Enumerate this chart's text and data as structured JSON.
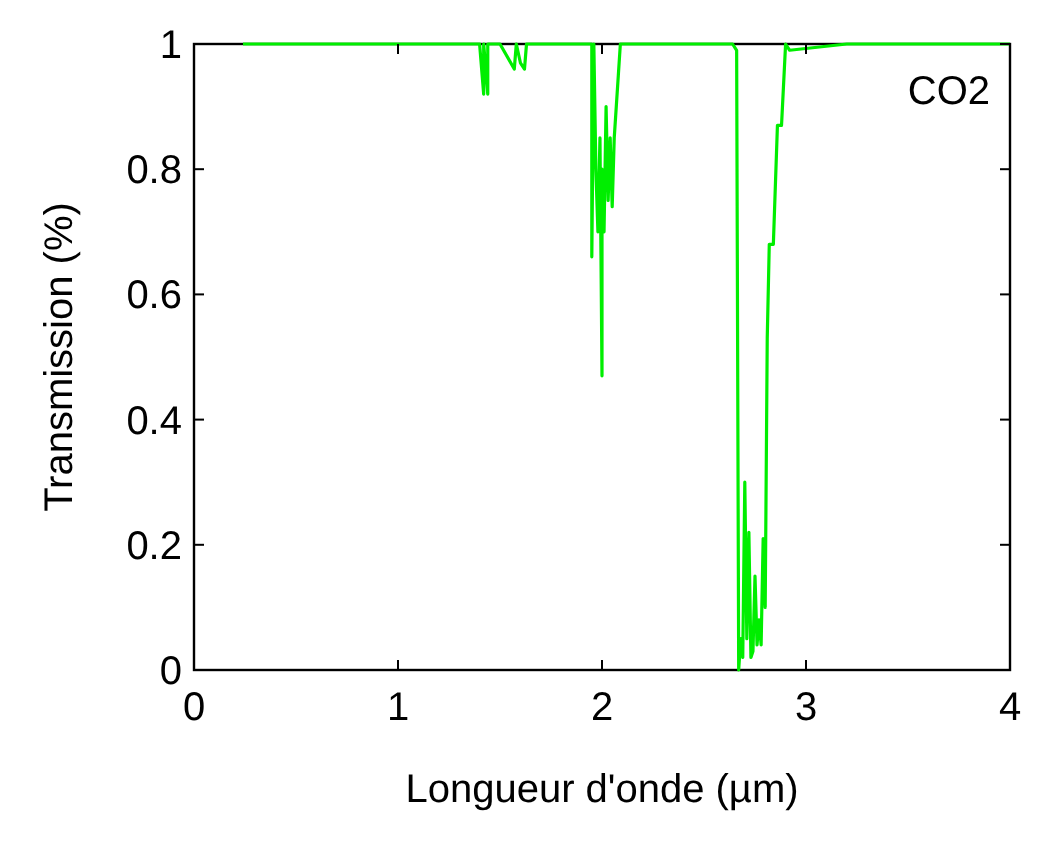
{
  "chart_data": {
    "type": "line",
    "xlabel": "Longueur d'onde (µm)",
    "ylabel": "Transmission (%)",
    "xlim": [
      0,
      4
    ],
    "ylim": [
      0,
      1
    ],
    "xticks": [
      0,
      1,
      2,
      3,
      4
    ],
    "yticks": [
      0,
      0.2,
      0.4,
      0.6,
      0.8,
      1
    ],
    "grid": false,
    "line_style": "solid",
    "annotations": [
      "CO2"
    ],
    "series": [
      {
        "color": "#00ee00",
        "x": [
          0.24,
          0.7,
          1.4,
          1.42,
          1.42,
          1.44,
          1.44,
          1.5,
          1.57,
          1.58,
          1.6,
          1.62,
          1.63,
          1.9,
          1.95,
          1.95,
          1.96,
          1.97,
          1.98,
          1.99,
          2.0,
          2.0,
          2.01,
          2.02,
          2.03,
          2.04,
          2.05,
          2.06,
          2.07,
          2.08,
          2.09,
          2.1,
          2.64,
          2.66,
          2.67,
          2.68,
          2.69,
          2.7,
          2.71,
          2.72,
          2.73,
          2.74,
          2.75,
          2.76,
          2.77,
          2.78,
          2.79,
          2.8,
          2.81,
          2.82,
          2.84,
          2.86,
          2.88,
          2.9,
          2.92,
          3.2,
          4.0
        ],
        "values": [
          1,
          1,
          1,
          0.92,
          1,
          0.92,
          1,
          1,
          0.96,
          1,
          0.97,
          0.96,
          1,
          1,
          1,
          0.66,
          1,
          0.8,
          0.7,
          0.85,
          0.47,
          0.8,
          0.7,
          0.9,
          0.75,
          0.85,
          0.74,
          0.85,
          0.9,
          0.95,
          1,
          1,
          1,
          0.99,
          0.0,
          0.05,
          0.02,
          0.3,
          0.05,
          0.22,
          0.02,
          0.03,
          0.15,
          0.04,
          0.08,
          0.04,
          0.21,
          0.1,
          0.53,
          0.68,
          0.68,
          0.87,
          0.87,
          1,
          0.99,
          1,
          1
        ]
      }
    ]
  }
}
